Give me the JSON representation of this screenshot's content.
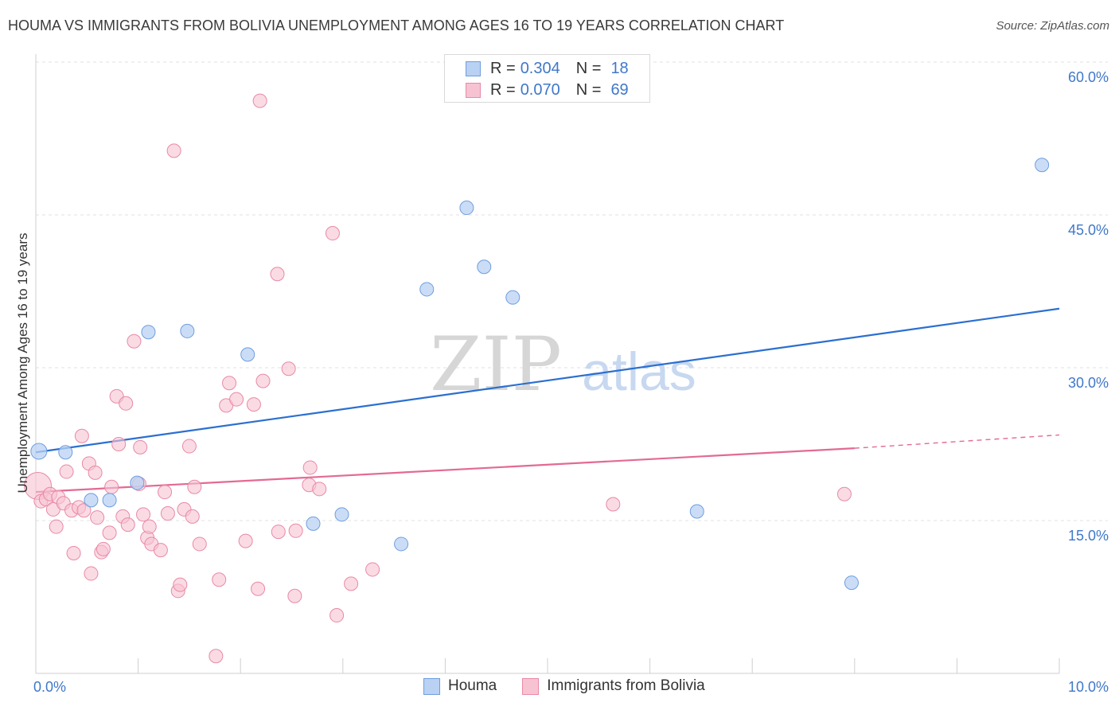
{
  "title": "HOUMA VS IMMIGRANTS FROM BOLIVIA UNEMPLOYMENT AMONG AGES 16 TO 19 YEARS CORRELATION CHART",
  "source": "Source: ZipAtlas.com",
  "watermark": {
    "zip": "ZIP",
    "atlas": "atlas"
  },
  "legend": {
    "houma": {
      "r_label": "R =",
      "r_value": "0.304",
      "n_label": "N =",
      "n_value": "18"
    },
    "bolivia": {
      "r_label": "R =",
      "r_value": "0.070",
      "n_label": "N =",
      "n_value": "69"
    }
  },
  "bottom_legend": {
    "houma": "Houma",
    "bolivia": "Immigrants from Bolivia"
  },
  "colors": {
    "houma_fill": "#b9d1f3",
    "houma_stroke": "#6e9edf",
    "houma_line": "#2b6fd0",
    "bolivia_fill": "#f7c3d2",
    "bolivia_stroke": "#e989a6",
    "bolivia_line": "#e36a93",
    "tick_label": "#3f78c9",
    "grid": "#e2e2e2"
  },
  "chart_data": {
    "type": "scatter",
    "title": "HOUMA VS IMMIGRANTS FROM BOLIVIA UNEMPLOYMENT AMONG AGES 16 TO 19 YEARS CORRELATION CHART",
    "xlabel": "",
    "ylabel": "Unemployment Among Ages 16 to 19 years",
    "xlim": [
      0,
      10
    ],
    "ylim": [
      0,
      60
    ],
    "x_tick_labels": [
      "0.0%",
      "10.0%"
    ],
    "y_ticks": [
      15,
      30,
      45,
      60
    ],
    "y_tick_labels": [
      "15.0%",
      "30.0%",
      "45.0%",
      "60.0%"
    ],
    "series": [
      {
        "name": "Houma",
        "points": [
          [
            0.03,
            21.8
          ],
          [
            0.29,
            21.7
          ],
          [
            0.54,
            17.0
          ],
          [
            0.72,
            17.0
          ],
          [
            0.99,
            18.7
          ],
          [
            1.1,
            33.5
          ],
          [
            1.48,
            33.6
          ],
          [
            2.07,
            31.3
          ],
          [
            2.71,
            14.7
          ],
          [
            2.99,
            15.6
          ],
          [
            3.57,
            12.7
          ],
          [
            3.82,
            37.7
          ],
          [
            4.21,
            45.7
          ],
          [
            4.38,
            39.9
          ],
          [
            4.66,
            36.9
          ],
          [
            6.46,
            15.9
          ],
          [
            7.97,
            8.9
          ],
          [
            9.83,
            49.9
          ]
        ],
        "trend": {
          "x": [
            0,
            10
          ],
          "y": [
            21.7,
            35.8
          ]
        }
      },
      {
        "name": "Immigrants from Bolivia",
        "points": [
          [
            0.02,
            18.4
          ],
          [
            0.05,
            16.9
          ],
          [
            0.1,
            17.1
          ],
          [
            0.14,
            17.6
          ],
          [
            0.17,
            16.1
          ],
          [
            0.2,
            14.4
          ],
          [
            0.22,
            17.3
          ],
          [
            0.27,
            16.7
          ],
          [
            0.3,
            19.8
          ],
          [
            0.35,
            16.0
          ],
          [
            0.37,
            11.8
          ],
          [
            0.42,
            16.3
          ],
          [
            0.45,
            23.3
          ],
          [
            0.47,
            16.0
          ],
          [
            0.52,
            20.6
          ],
          [
            0.54,
            9.8
          ],
          [
            0.58,
            19.7
          ],
          [
            0.6,
            15.3
          ],
          [
            0.64,
            11.9
          ],
          [
            0.66,
            12.2
          ],
          [
            0.72,
            13.8
          ],
          [
            0.74,
            18.3
          ],
          [
            0.79,
            27.2
          ],
          [
            0.81,
            22.5
          ],
          [
            0.85,
            15.4
          ],
          [
            0.88,
            26.5
          ],
          [
            0.9,
            14.6
          ],
          [
            0.96,
            32.6
          ],
          [
            1.01,
            18.6
          ],
          [
            1.02,
            22.2
          ],
          [
            1.05,
            15.6
          ],
          [
            1.09,
            13.3
          ],
          [
            1.11,
            14.4
          ],
          [
            1.13,
            12.7
          ],
          [
            1.22,
            12.1
          ],
          [
            1.26,
            17.8
          ],
          [
            1.29,
            15.7
          ],
          [
            1.35,
            51.3
          ],
          [
            1.39,
            8.1
          ],
          [
            1.41,
            8.7
          ],
          [
            1.45,
            16.1
          ],
          [
            1.5,
            22.3
          ],
          [
            1.53,
            15.4
          ],
          [
            1.55,
            18.3
          ],
          [
            1.6,
            12.7
          ],
          [
            1.76,
            1.7
          ],
          [
            1.79,
            9.2
          ],
          [
            1.86,
            26.3
          ],
          [
            1.89,
            28.5
          ],
          [
            1.96,
            26.9
          ],
          [
            2.05,
            13.0
          ],
          [
            2.13,
            26.4
          ],
          [
            2.17,
            8.3
          ],
          [
            2.19,
            56.2
          ],
          [
            2.22,
            28.7
          ],
          [
            2.36,
            39.2
          ],
          [
            2.37,
            13.9
          ],
          [
            2.47,
            29.9
          ],
          [
            2.53,
            7.6
          ],
          [
            2.54,
            14.0
          ],
          [
            2.67,
            18.5
          ],
          [
            2.68,
            20.2
          ],
          [
            2.77,
            18.1
          ],
          [
            2.9,
            43.2
          ],
          [
            2.94,
            5.7
          ],
          [
            3.08,
            8.8
          ],
          [
            3.29,
            10.2
          ],
          [
            5.64,
            16.6
          ],
          [
            7.9,
            17.6
          ]
        ],
        "trend": {
          "x": [
            0,
            8.0
          ],
          "y": [
            17.8,
            22.1
          ]
        },
        "trend_dashed": {
          "x": [
            8.0,
            10
          ],
          "y": [
            22.1,
            23.4
          ]
        }
      }
    ]
  }
}
